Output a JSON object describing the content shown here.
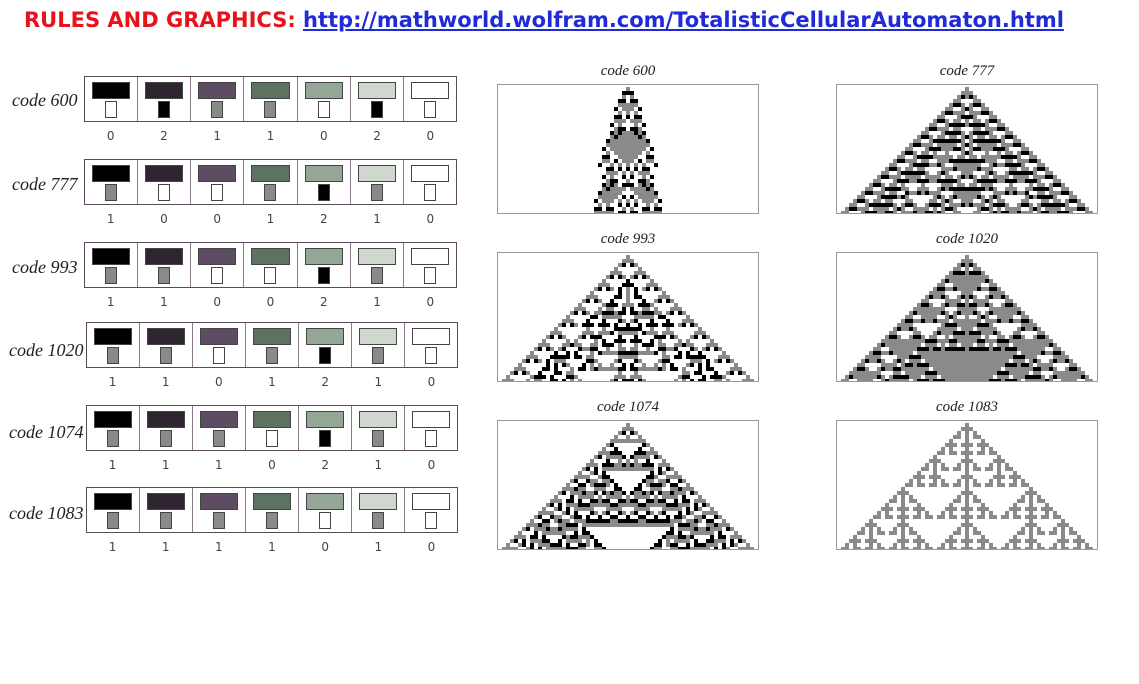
{
  "header": {
    "label": "RULES AND GRAPHICS:",
    "url": "http://mathworld.wolfram.com/TotalisticCellularAutomaton.html"
  },
  "colors": {
    "title_red": "#e8121a",
    "link_blue": "#1f2ad8",
    "cell_shades": [
      "#000000",
      "#2e2530",
      "#5e4d62",
      "#5d7260",
      "#94a695",
      "#cfd7cf",
      "#ffffff"
    ],
    "state_colors": [
      "#ffffff",
      "#8a8a8a",
      "#000000"
    ]
  },
  "rules": [
    {
      "label": "code 600",
      "digits": [
        "0",
        "2",
        "1",
        "1",
        "0",
        "2",
        "0"
      ],
      "outputs": [
        0,
        2,
        1,
        1,
        0,
        2,
        0
      ]
    },
    {
      "label": "code 777",
      "digits": [
        "1",
        "0",
        "0",
        "1",
        "2",
        "1",
        "0"
      ],
      "outputs": [
        1,
        0,
        0,
        1,
        2,
        1,
        0
      ]
    },
    {
      "label": "code 993",
      "digits": [
        "1",
        "1",
        "0",
        "0",
        "2",
        "1",
        "0"
      ],
      "outputs": [
        1,
        1,
        0,
        0,
        2,
        1,
        0
      ]
    },
    {
      "label": "code 1020",
      "digits": [
        "1",
        "1",
        "0",
        "1",
        "2",
        "1",
        "0"
      ],
      "outputs": [
        1,
        1,
        0,
        1,
        2,
        1,
        0
      ]
    },
    {
      "label": "code 1074",
      "digits": [
        "1",
        "1",
        "1",
        "0",
        "2",
        "1",
        "0"
      ],
      "outputs": [
        1,
        1,
        1,
        0,
        2,
        1,
        0
      ]
    },
    {
      "label": "code 1083",
      "digits": [
        "1",
        "1",
        "1",
        "1",
        "0",
        "1",
        "0"
      ],
      "outputs": [
        1,
        1,
        1,
        1,
        0,
        1,
        0
      ]
    }
  ],
  "patterns": [
    {
      "title": "code 600"
    },
    {
      "title": "code 777"
    },
    {
      "title": "code 993"
    },
    {
      "title": "code 1020"
    },
    {
      "title": "code 1074"
    },
    {
      "title": "code 1083"
    }
  ]
}
